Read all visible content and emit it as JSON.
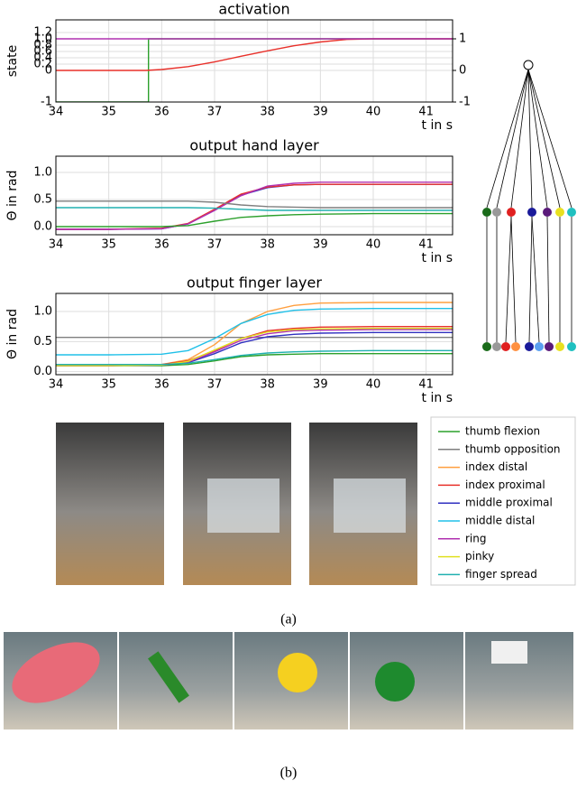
{
  "chart_data": [
    {
      "type": "line",
      "title": "activation",
      "ylabel": "state",
      "xlabel": "t in s",
      "grid": true,
      "xlim": [
        34,
        41.5
      ],
      "xticks": [
        34,
        35,
        36,
        37,
        38,
        39,
        40,
        41
      ],
      "ylim": [
        -1,
        1.6
      ],
      "yticks": [
        -1,
        0,
        0.2,
        0.4,
        0.6,
        0.8,
        {
          "value": 1,
          "label": "1.0"
        },
        1.2
      ],
      "y2lim": [
        -1,
        1.6
      ],
      "y2ticks": [
        -1,
        0,
        1
      ],
      "series": [
        {
          "color": "#2ca02c",
          "axis": "y2",
          "x": [
            34,
            35.75,
            35.75,
            41.5
          ],
          "values": [
            -1,
            -1,
            1,
            1
          ]
        },
        {
          "color": "#e8302a",
          "axis": "y2",
          "x": [
            34,
            35.7,
            36,
            36.5,
            37,
            37.5,
            38,
            38.5,
            39,
            39.5,
            40,
            41.5
          ],
          "values": [
            0,
            0,
            0.03,
            0.12,
            0.27,
            0.45,
            0.62,
            0.78,
            0.9,
            0.98,
            1,
            1
          ]
        },
        {
          "color": "#b030b0",
          "axis": "y2",
          "x": [
            34,
            41.5
          ],
          "values": [
            1,
            1
          ]
        }
      ]
    },
    {
      "type": "line",
      "title": "output hand layer",
      "ylabel": "Θ in rad",
      "xlabel": "t in s",
      "grid": true,
      "xlim": [
        34,
        41.5
      ],
      "xticks": [
        34,
        35,
        36,
        37,
        38,
        39,
        40,
        41
      ],
      "ylim": [
        -0.15,
        1.3
      ],
      "yticks": [
        {
          "value": 0,
          "label": "0.0"
        },
        0.5,
        {
          "value": 1,
          "label": "1.0"
        }
      ],
      "x": [
        34,
        35,
        36,
        36.5,
        37,
        37.5,
        38,
        38.5,
        39,
        40,
        41.5
      ],
      "series": [
        {
          "color": "#3030c0",
          "values": [
            -0.05,
            -0.05,
            -0.04,
            0.05,
            0.3,
            0.58,
            0.72,
            0.77,
            0.78,
            0.78,
            0.78
          ]
        },
        {
          "color": "#e8302a",
          "values": [
            -0.05,
            -0.05,
            -0.03,
            0.06,
            0.32,
            0.6,
            0.73,
            0.77,
            0.78,
            0.78,
            0.78
          ]
        },
        {
          "color": "#b030b0",
          "values": [
            -0.05,
            -0.05,
            -0.04,
            0.05,
            0.3,
            0.57,
            0.75,
            0.8,
            0.82,
            0.82,
            0.82
          ]
        },
        {
          "color": "#2ca02c",
          "values": [
            0,
            0,
            0,
            0.02,
            0.1,
            0.17,
            0.2,
            0.22,
            0.23,
            0.24,
            0.24
          ]
        },
        {
          "color": "#7f7f7f",
          "values": [
            0.47,
            0.47,
            0.47,
            0.47,
            0.45,
            0.4,
            0.37,
            0.36,
            0.35,
            0.35,
            0.35
          ]
        },
        {
          "color": "#20b0b0",
          "values": [
            0.35,
            0.35,
            0.35,
            0.35,
            0.34,
            0.32,
            0.3,
            0.3,
            0.3,
            0.3,
            0.3
          ]
        }
      ]
    },
    {
      "type": "line",
      "title": "output finger layer",
      "ylabel": "Θ in rad",
      "xlabel": "t in s",
      "grid": true,
      "xlim": [
        34,
        41.5
      ],
      "xticks": [
        34,
        35,
        36,
        37,
        38,
        39,
        40,
        41
      ],
      "ylim": [
        -0.05,
        1.3
      ],
      "yticks": [
        {
          "value": 0,
          "label": "0.0"
        },
        0.5,
        {
          "value": 1,
          "label": "1.0"
        }
      ],
      "x": [
        34,
        35,
        36,
        36.5,
        37,
        37.5,
        38,
        38.5,
        39,
        40,
        41.5
      ],
      "series": [
        {
          "name": "thumb flexion",
          "color": "#2ca02c",
          "values": [
            0.1,
            0.1,
            0.1,
            0.12,
            0.18,
            0.25,
            0.28,
            0.29,
            0.3,
            0.3,
            0.3
          ]
        },
        {
          "name": "thumb opposition",
          "color": "#7f7f7f",
          "values": [
            0.57,
            0.57,
            0.57,
            0.57,
            0.57,
            0.57,
            0.57,
            0.57,
            0.57,
            0.57,
            0.57
          ]
        },
        {
          "name": "index distal",
          "color": "#ff9f3f",
          "values": [
            0.1,
            0.1,
            0.12,
            0.2,
            0.45,
            0.8,
            1,
            1.1,
            1.14,
            1.15,
            1.15
          ]
        },
        {
          "name": "index proximal",
          "color": "#e8302a",
          "values": [
            0.1,
            0.1,
            0.12,
            0.18,
            0.35,
            0.55,
            0.68,
            0.72,
            0.74,
            0.75,
            0.75
          ]
        },
        {
          "name": "middle proximal",
          "color": "#3030c0",
          "values": [
            0.1,
            0.1,
            0.11,
            0.15,
            0.3,
            0.48,
            0.58,
            0.62,
            0.64,
            0.65,
            0.65
          ]
        },
        {
          "name": "middle distal",
          "color": "#20c0e8",
          "values": [
            0.28,
            0.28,
            0.29,
            0.35,
            0.55,
            0.8,
            0.95,
            1.02,
            1.04,
            1.05,
            1.05
          ]
        },
        {
          "name": "ring",
          "color": "#b030b0",
          "values": [
            0.1,
            0.1,
            0.11,
            0.16,
            0.33,
            0.52,
            0.63,
            0.68,
            0.69,
            0.7,
            0.7
          ]
        },
        {
          "name": "pinky",
          "color": "#e0e020",
          "values": [
            0.1,
            0.1,
            0.11,
            0.17,
            0.36,
            0.55,
            0.66,
            0.7,
            0.71,
            0.72,
            0.72
          ]
        },
        {
          "name": "finger spread",
          "color": "#20b0b0",
          "values": [
            0.12,
            0.12,
            0.12,
            0.14,
            0.2,
            0.27,
            0.31,
            0.33,
            0.34,
            0.35,
            0.35
          ]
        }
      ]
    }
  ],
  "figure": {
    "caption_a": "(a)",
    "caption_b": "(b)"
  }
}
